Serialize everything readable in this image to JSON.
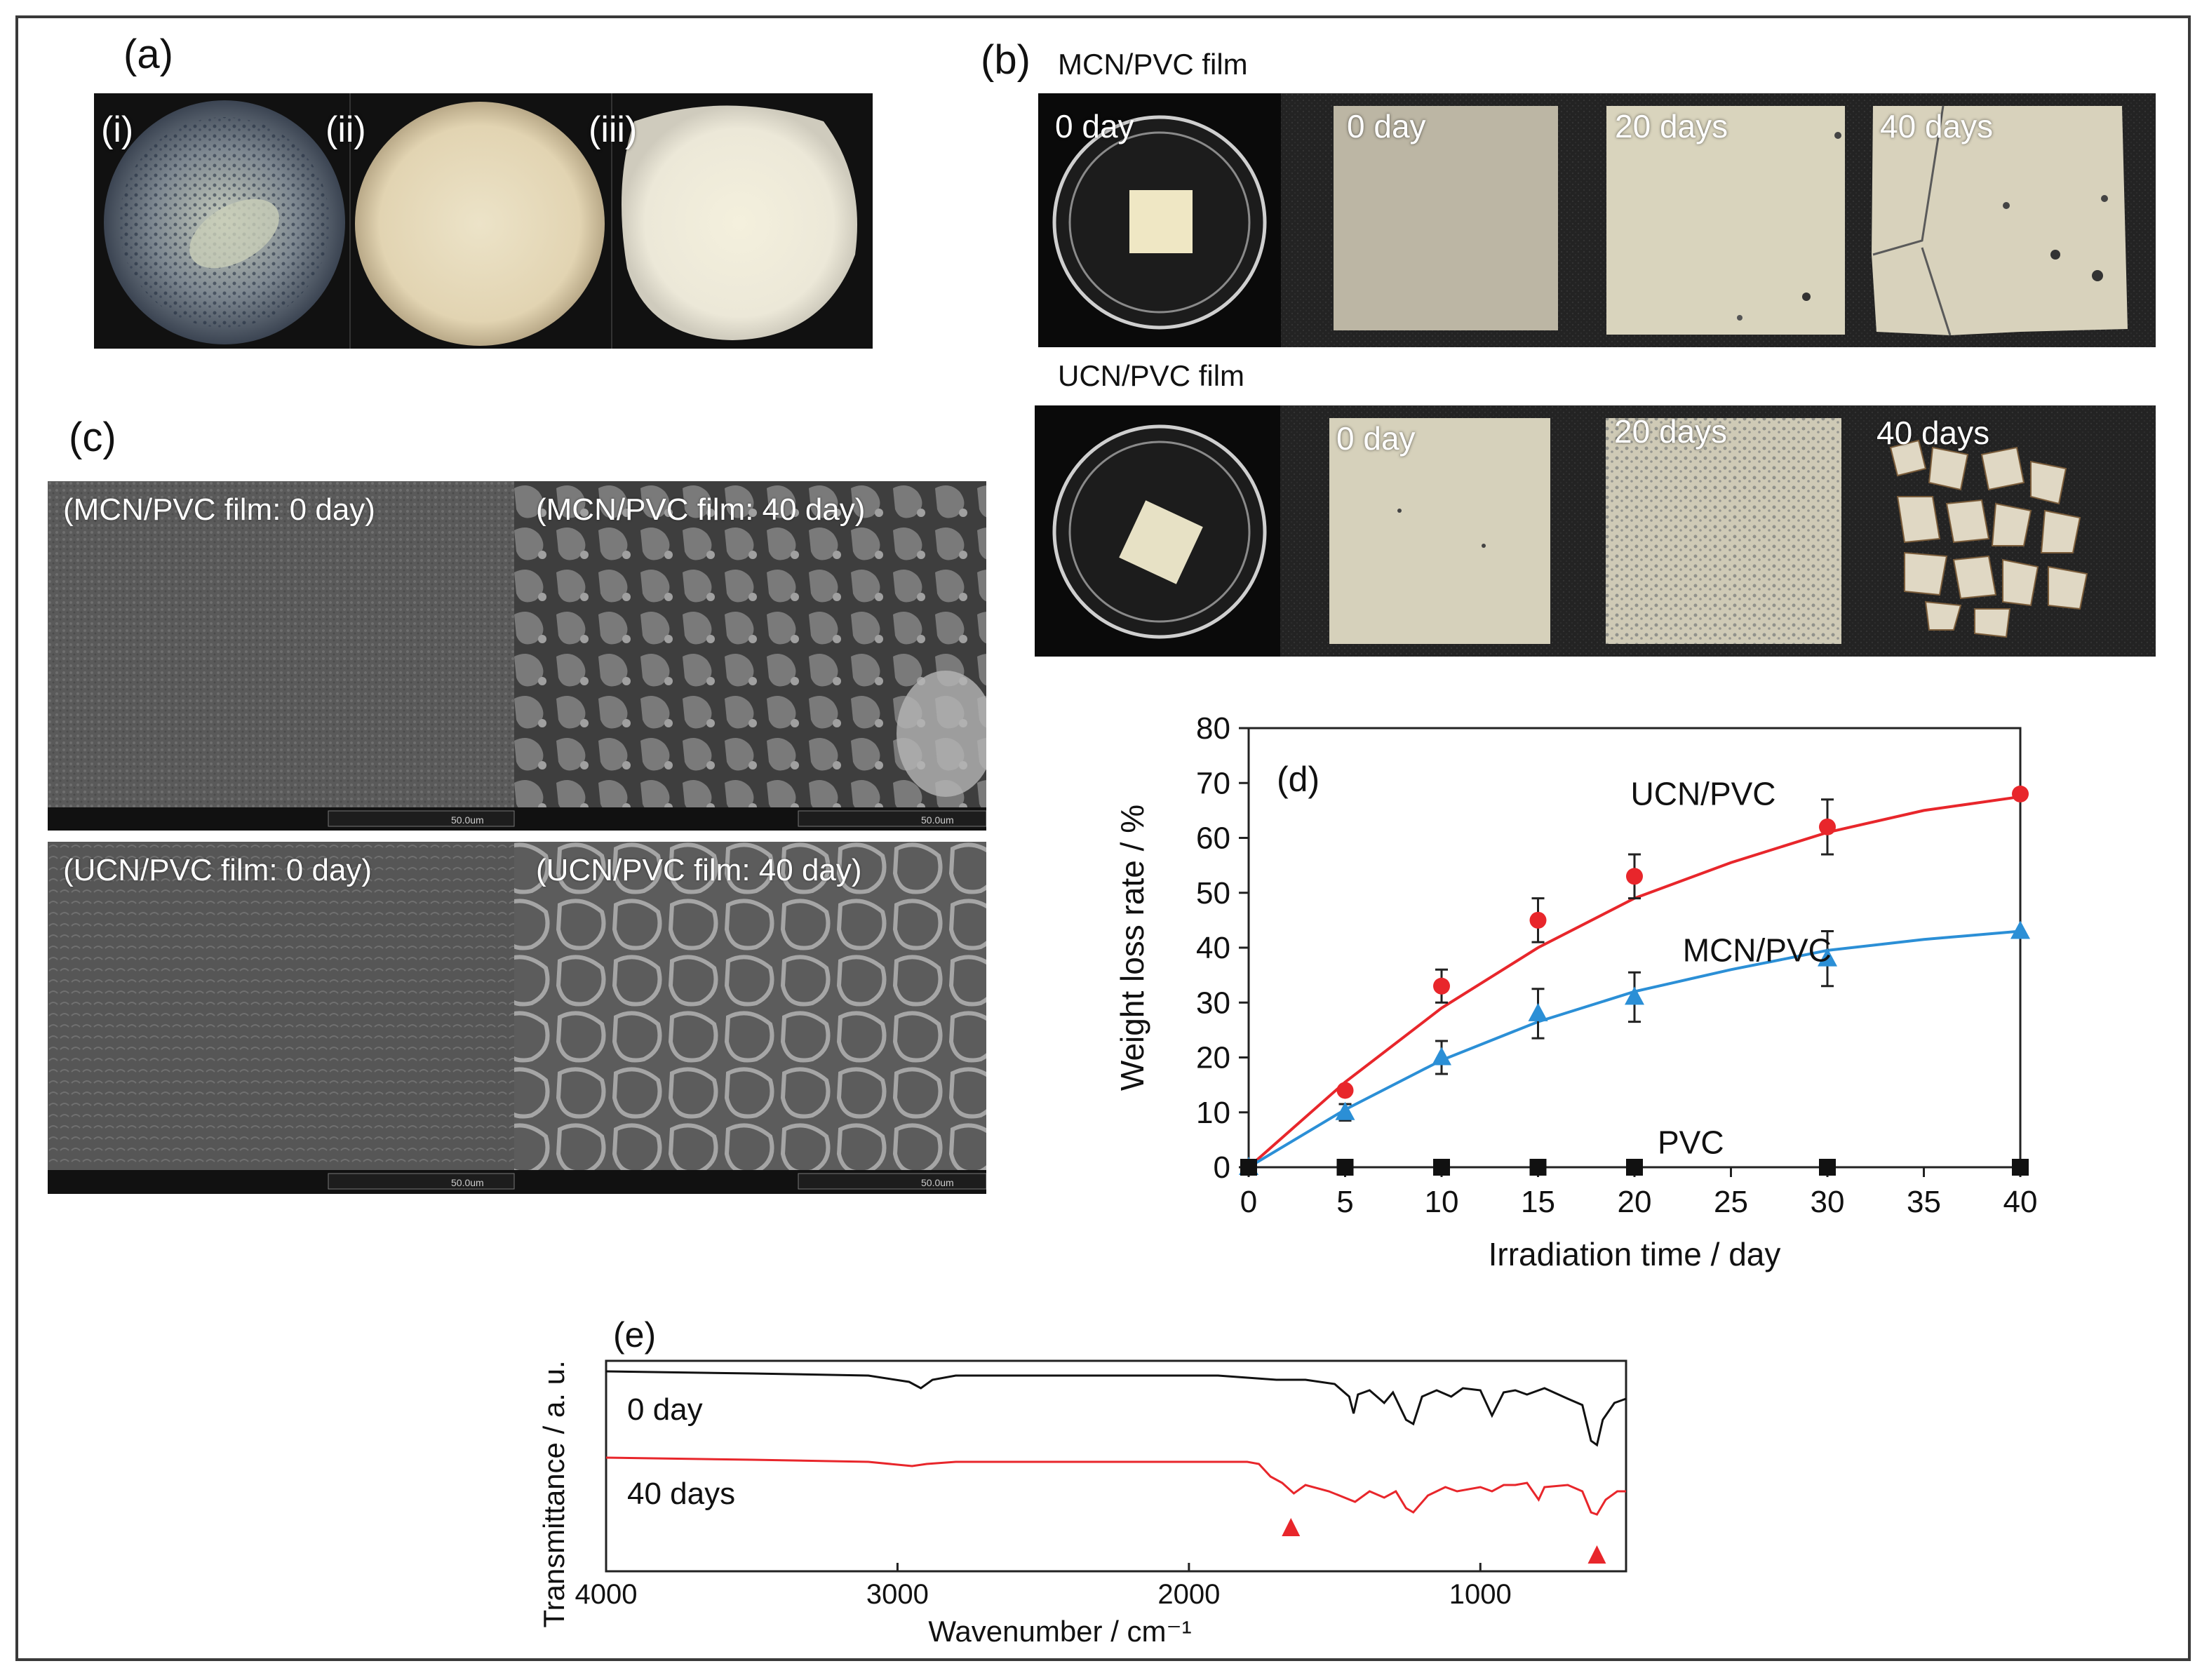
{
  "panel_a": {
    "label": "(a)",
    "sublabels": [
      "(i)",
      "(ii)",
      "(iii)"
    ]
  },
  "panel_b": {
    "label": "(b)",
    "row1_title": "MCN/PVC film",
    "row2_title": "UCN/PVC film",
    "row1_labels": [
      "0 day",
      "0 day",
      "20 days",
      "40 days"
    ],
    "row2_labels": [
      "0 day",
      "20 days",
      "40 days"
    ]
  },
  "panel_c": {
    "label": "(c)",
    "captions": [
      "(MCN/PVC film: 0 day)",
      "(MCN/PVC film: 40 day)",
      "(UCN/PVC film: 0 day)",
      "(UCN/PVC film: 40 day)"
    ],
    "scalebar": "50.0um"
  },
  "chart_data": [
    {
      "type": "scatter",
      "panel_label": "(d)",
      "xlabel": "Irradiation time / day",
      "ylabel": "Weight loss rate / %",
      "xlim": [
        0,
        40
      ],
      "ylim": [
        0,
        80
      ],
      "xticks": [
        0,
        5,
        10,
        15,
        20,
        25,
        30,
        35,
        40
      ],
      "yticks": [
        0,
        10,
        20,
        30,
        40,
        50,
        60,
        70,
        80
      ],
      "series": [
        {
          "name": "UCN/PVC",
          "color": "#e8262b",
          "marker": "circle",
          "x": [
            0,
            5,
            10,
            15,
            20,
            30,
            40
          ],
          "y": [
            0,
            14,
            33,
            45,
            53,
            62,
            68
          ],
          "err": [
            0,
            0,
            3,
            4,
            4,
            5,
            0
          ],
          "fit": [
            [
              0,
              0
            ],
            [
              5,
              15.5
            ],
            [
              10,
              29
            ],
            [
              15,
              40
            ],
            [
              20,
              49
            ],
            [
              25,
              55.5
            ],
            [
              30,
              61
            ],
            [
              35,
              65
            ],
            [
              40,
              67.5
            ]
          ]
        },
        {
          "name": "MCN/PVC",
          "color": "#2b8fd6",
          "marker": "triangle",
          "x": [
            0,
            5,
            10,
            15,
            20,
            30,
            40
          ],
          "y": [
            0,
            10,
            20,
            28,
            31,
            38,
            43
          ],
          "err": [
            0,
            1.5,
            3,
            4.5,
            4.5,
            5,
            0
          ],
          "fit": [
            [
              0,
              0
            ],
            [
              5,
              10.5
            ],
            [
              10,
              19.5
            ],
            [
              15,
              26.5
            ],
            [
              20,
              32
            ],
            [
              25,
              36
            ],
            [
              30,
              39.5
            ],
            [
              35,
              41.5
            ],
            [
              40,
              43
            ]
          ]
        },
        {
          "name": "PVC",
          "color": "#111111",
          "marker": "square",
          "x": [
            0,
            5,
            10,
            15,
            20,
            30,
            40
          ],
          "y": [
            0,
            0,
            0,
            0,
            0,
            0,
            0
          ],
          "err": [
            0,
            0,
            0,
            0,
            0,
            0,
            0
          ]
        }
      ]
    },
    {
      "type": "line",
      "panel_label": "(e)",
      "xlabel": "Wavenumber / cm⁻¹",
      "ylabel": "Transmittance / a. u.",
      "xlim": [
        4000,
        500
      ],
      "xticks": [
        4000,
        3000,
        2000,
        1000
      ],
      "series": [
        {
          "name": "0 day",
          "color": "#111111",
          "points": [
            [
              4000,
              0.95
            ],
            [
              3500,
              0.94
            ],
            [
              3100,
              0.93
            ],
            [
              2960,
              0.9
            ],
            [
              2920,
              0.87
            ],
            [
              2880,
              0.91
            ],
            [
              2800,
              0.93
            ],
            [
              2500,
              0.93
            ],
            [
              2100,
              0.93
            ],
            [
              1900,
              0.93
            ],
            [
              1800,
              0.92
            ],
            [
              1700,
              0.91
            ],
            [
              1600,
              0.91
            ],
            [
              1500,
              0.89
            ],
            [
              1450,
              0.83
            ],
            [
              1435,
              0.75
            ],
            [
              1420,
              0.84
            ],
            [
              1380,
              0.86
            ],
            [
              1330,
              0.8
            ],
            [
              1300,
              0.85
            ],
            [
              1255,
              0.72
            ],
            [
              1230,
              0.7
            ],
            [
              1200,
              0.83
            ],
            [
              1150,
              0.86
            ],
            [
              1100,
              0.83
            ],
            [
              1060,
              0.87
            ],
            [
              1000,
              0.86
            ],
            [
              960,
              0.74
            ],
            [
              920,
              0.85
            ],
            [
              880,
              0.86
            ],
            [
              840,
              0.84
            ],
            [
              780,
              0.87
            ],
            [
              700,
              0.82
            ],
            [
              650,
              0.79
            ],
            [
              620,
              0.62
            ],
            [
              600,
              0.6
            ],
            [
              580,
              0.72
            ],
            [
              540,
              0.8
            ],
            [
              500,
              0.82
            ]
          ]
        },
        {
          "name": "40 days",
          "color": "#e8262b",
          "points": [
            [
              4000,
              0.54
            ],
            [
              3500,
              0.53
            ],
            [
              3100,
              0.52
            ],
            [
              2950,
              0.5
            ],
            [
              2900,
              0.51
            ],
            [
              2800,
              0.52
            ],
            [
              2500,
              0.52
            ],
            [
              2100,
              0.52
            ],
            [
              1900,
              0.52
            ],
            [
              1800,
              0.52
            ],
            [
              1760,
              0.51
            ],
            [
              1720,
              0.45
            ],
            [
              1680,
              0.42
            ],
            [
              1640,
              0.37
            ],
            [
              1600,
              0.41
            ],
            [
              1520,
              0.38
            ],
            [
              1430,
              0.33
            ],
            [
              1380,
              0.38
            ],
            [
              1330,
              0.35
            ],
            [
              1290,
              0.38
            ],
            [
              1255,
              0.3
            ],
            [
              1230,
              0.28
            ],
            [
              1180,
              0.36
            ],
            [
              1120,
              0.4
            ],
            [
              1080,
              0.38
            ],
            [
              1000,
              0.4
            ],
            [
              960,
              0.38
            ],
            [
              920,
              0.41
            ],
            [
              880,
              0.41
            ],
            [
              840,
              0.42
            ],
            [
              800,
              0.34
            ],
            [
              780,
              0.4
            ],
            [
              700,
              0.41
            ],
            [
              650,
              0.38
            ],
            [
              620,
              0.28
            ],
            [
              600,
              0.27
            ],
            [
              570,
              0.34
            ],
            [
              530,
              0.38
            ],
            [
              500,
              0.38
            ]
          ]
        }
      ],
      "markers": [
        {
          "x": 1650
        },
        {
          "x": 600
        }
      ]
    }
  ]
}
